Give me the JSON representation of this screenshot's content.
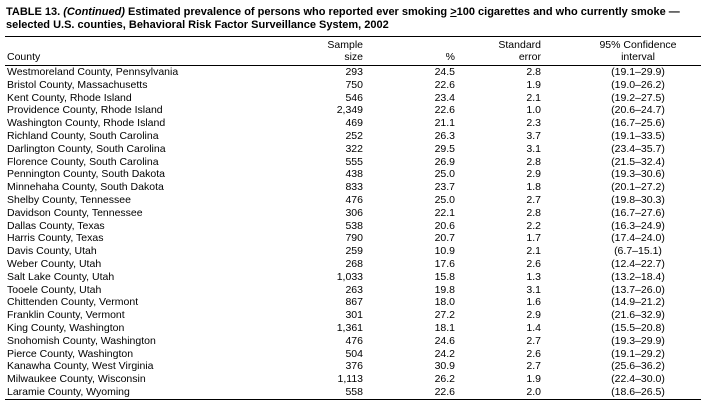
{
  "table": {
    "title": {
      "label": "TABLE 13. ",
      "continued": "(Continued) ",
      "before_geq": "Estimated prevalence of persons who reported ever smoking ",
      "geq_symbol": ">",
      "geq_number": "100",
      "after_geq": " cigarettes and who currently smoke —",
      "line2": "selected U.S. counties, Behavioral Risk Factor Surveillance System, 2002"
    },
    "columns": {
      "county": "County",
      "sample_line1": "Sample",
      "sample_line2": "size",
      "percent": "%",
      "se_line1": "Standard",
      "se_line2": "error",
      "ci_line1": "95% Confidence",
      "ci_line2": "interval"
    },
    "rows": [
      [
        "Westmoreland County, Pennsylvania",
        "293",
        "24.5",
        "2.8",
        "(19.1–29.9)"
      ],
      [
        "Bristol County, Massachusetts",
        "750",
        "22.6",
        "1.9",
        "(19.0–26.2)"
      ],
      [
        "Kent County, Rhode Island",
        "546",
        "23.4",
        "2.1",
        "(19.2–27.5)"
      ],
      [
        "Providence County, Rhode Island",
        "2,349",
        "22.6",
        "1.0",
        "(20.6–24.7)"
      ],
      [
        "Washington County, Rhode Island",
        "469",
        "21.1",
        "2.3",
        "(16.7–25.6)"
      ],
      [
        "Richland County, South Carolina",
        "252",
        "26.3",
        "3.7",
        "(19.1–33.5)"
      ],
      [
        "Darlington County, South Carolina",
        "322",
        "29.5",
        "3.1",
        "(23.4–35.7)"
      ],
      [
        "Florence County, South Carolina",
        "555",
        "26.9",
        "2.8",
        "(21.5–32.4)"
      ],
      [
        "Pennington County, South Dakota",
        "438",
        "25.0",
        "2.9",
        "(19.3–30.6)"
      ],
      [
        "Minnehaha County, South Dakota",
        "833",
        "23.7",
        "1.8",
        "(20.1–27.2)"
      ],
      [
        "Shelby County, Tennessee",
        "476",
        "25.0",
        "2.7",
        "(19.8–30.3)"
      ],
      [
        "Davidson County, Tennessee",
        "306",
        "22.1",
        "2.8",
        "(16.7–27.6)"
      ],
      [
        "Dallas County, Texas",
        "538",
        "20.6",
        "2.2",
        "(16.3–24.9)"
      ],
      [
        "Harris County, Texas",
        "790",
        "20.7",
        "1.7",
        "(17.4–24.0)"
      ],
      [
        "Davis County, Utah",
        "259",
        "10.9",
        "2.1",
        "(6.7–15.1)"
      ],
      [
        "Weber County, Utah",
        "268",
        "17.6",
        "2.6",
        "(12.4–22.7)"
      ],
      [
        "Salt Lake County, Utah",
        "1,033",
        "15.8",
        "1.3",
        "(13.2–18.4)"
      ],
      [
        "Tooele County, Utah",
        "263",
        "19.8",
        "3.1",
        "(13.7–26.0)"
      ],
      [
        "Chittenden County, Vermont",
        "867",
        "18.0",
        "1.6",
        "(14.9–21.2)"
      ],
      [
        "Franklin County, Vermont",
        "301",
        "27.2",
        "2.9",
        "(21.6–32.9)"
      ],
      [
        "King County, Washington",
        "1,361",
        "18.1",
        "1.4",
        "(15.5–20.8)"
      ],
      [
        "Snohomish County, Washington",
        "476",
        "24.6",
        "2.7",
        "(19.3–29.9)"
      ],
      [
        "Pierce County, Washington",
        "504",
        "24.2",
        "2.6",
        "(19.1–29.2)"
      ],
      [
        "Kanawha County, West Virginia",
        "376",
        "30.9",
        "2.7",
        "(25.6–36.2)"
      ],
      [
        "Milwaukee County, Wisconsin",
        "1,113",
        "26.2",
        "1.9",
        "(22.4–30.0)"
      ],
      [
        "Laramie County, Wyoming",
        "558",
        "22.6",
        "2.0",
        "(18.6–26.5)"
      ]
    ]
  }
}
